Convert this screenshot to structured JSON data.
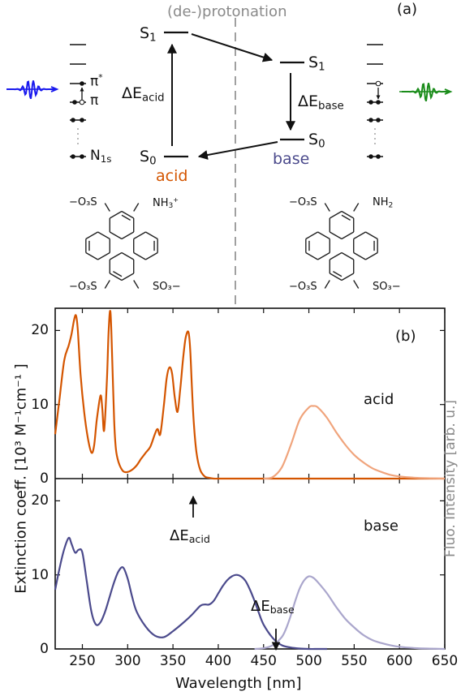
{
  "figure": {
    "panel_a_label": "(a)",
    "panel_b_label": "(b)",
    "protonation_label": "(de-)protonation",
    "acid_label": "acid",
    "base_label": "base",
    "state_labels": {
      "s1_left": "S",
      "s1_left_sub": "1",
      "s0_left": "S",
      "s0_left_sub": "0",
      "s1_right": "S",
      "s1_right_sub": "1",
      "s0_right": "S",
      "s0_right_sub": "0"
    },
    "delta_acid": {
      "main": "ΔE",
      "sub": "acid"
    },
    "delta_base": {
      "main": "ΔE",
      "sub": "base"
    },
    "mo_labels": {
      "pi_star": "π",
      "pi_star_sup": "*",
      "pi": "π",
      "n1s": "N",
      "n1s_sub": "1s"
    },
    "structure_acid": {
      "top_left": "−O₃S",
      "top_right_main": "NH",
      "top_right_sub": "3",
      "top_right_sup": "+",
      "bottom_left": "−O₃S",
      "bottom_right": "SO₃−"
    },
    "structure_base": {
      "top_left": "−O₃S",
      "top_right_main": "NH",
      "top_right_sub": "2",
      "bottom_left": "−O₃S",
      "bottom_right": "SO₃−"
    },
    "colors": {
      "acid": "#d45500",
      "acid_light": "#f0a47c",
      "base": "#4b4a8c",
      "base_light": "#aaa6cc",
      "xray_in": "#1a1aee",
      "xray_out": "#1a8c1a"
    }
  },
  "chart_data": [
    {
      "type": "line",
      "panel": "top",
      "ylabel": "Extinction coeff. [10³ M⁻¹cm⁻¹ ]",
      "y2label": "Fluo. Intensity [arb. u.]",
      "xlim": [
        220,
        650
      ],
      "ylim": [
        0,
        23
      ],
      "yticks": [
        0,
        10,
        20
      ],
      "series_label": "acid",
      "series": [
        {
          "name": "acid absorption",
          "x": [
            220,
            225,
            230,
            235,
            238,
            241,
            243,
            245,
            248,
            252,
            256,
            260,
            263,
            266,
            270,
            272,
            274,
            277,
            279,
            281,
            283,
            285,
            287,
            290,
            295,
            300,
            305,
            310,
            315,
            320,
            325,
            330,
            333,
            336,
            340,
            343,
            346,
            349,
            352,
            355,
            358,
            361,
            364,
            367,
            369,
            371,
            373,
            376,
            380,
            385,
            390,
            395,
            400,
            410,
            420,
            440,
            460,
            480,
            500,
            520,
            540,
            560,
            580,
            600,
            620,
            640,
            650
          ],
          "y": [
            6,
            11,
            16,
            18,
            19.5,
            21.5,
            22,
            20,
            14,
            9,
            5.5,
            3.5,
            4.5,
            8,
            11.2,
            9.5,
            6.5,
            13,
            20,
            22.5,
            16,
            8,
            4,
            2.2,
            1,
            0.9,
            1.2,
            1.8,
            2.7,
            3.5,
            4.3,
            6,
            6.7,
            6,
            10,
            13.5,
            15,
            14.2,
            11,
            9,
            12,
            16,
            19,
            19.8,
            17.5,
            12,
            7.5,
            3.5,
            1.2,
            0.3,
            0.1,
            0,
            0,
            0,
            0,
            0,
            0,
            0,
            0,
            0,
            0,
            0,
            0,
            0,
            0,
            0,
            0
          ]
        },
        {
          "name": "acid fluorescence",
          "x": [
            450,
            460,
            470,
            480,
            490,
            500,
            505,
            510,
            520,
            530,
            540,
            550,
            560,
            570,
            580,
            590,
            600,
            620,
            650
          ],
          "y": [
            0,
            0.2,
            1.5,
            4.5,
            8,
            9.6,
            9.8,
            9.6,
            8.2,
            6.3,
            4.6,
            3.2,
            2.2,
            1.4,
            0.9,
            0.5,
            0.3,
            0.1,
            0
          ]
        }
      ]
    },
    {
      "type": "line",
      "panel": "bottom",
      "xlabel": "Wavelength [nm]",
      "xlim": [
        220,
        650
      ],
      "ylim": [
        0,
        23
      ],
      "xticks": [
        250,
        300,
        350,
        400,
        450,
        500,
        550,
        600,
        650
      ],
      "yticks": [
        0,
        10,
        20
      ],
      "series_label": "base",
      "annotation_acid": "ΔE",
      "annotation_base": "ΔE",
      "series": [
        {
          "name": "base absorption",
          "x": [
            220,
            225,
            230,
            235,
            238,
            242,
            246,
            250,
            255,
            260,
            265,
            270,
            275,
            280,
            285,
            290,
            295,
            300,
            305,
            310,
            320,
            330,
            340,
            350,
            360,
            370,
            380,
            385,
            390,
            395,
            400,
            405,
            410,
            415,
            420,
            425,
            430,
            435,
            440,
            445,
            450,
            460,
            470,
            480,
            490,
            500,
            510,
            520
          ],
          "y": [
            8,
            11,
            13.5,
            15,
            14.2,
            13,
            13.4,
            13,
            9,
            5,
            3.3,
            3.6,
            5,
            7,
            9,
            10.5,
            11,
            9.5,
            7,
            5,
            3,
            1.8,
            1.6,
            2.4,
            3.4,
            4.5,
            5.8,
            6,
            6,
            6.5,
            7.5,
            8.5,
            9.3,
            9.8,
            10,
            9.8,
            9.2,
            8,
            6.5,
            4.8,
            3.3,
            1.5,
            0.5,
            0.2,
            0.05,
            0,
            0,
            0
          ]
        },
        {
          "name": "base fluorescence",
          "x": [
            440,
            450,
            460,
            470,
            475,
            480,
            485,
            490,
            495,
            500,
            505,
            510,
            520,
            530,
            540,
            550,
            560,
            570,
            580,
            590,
            600,
            620,
            650
          ],
          "y": [
            0,
            0.1,
            0.5,
            1.6,
            2.8,
            4.5,
            6.5,
            8.2,
            9.3,
            9.8,
            9.6,
            9,
            7.5,
            5.7,
            4.1,
            2.9,
            1.9,
            1.2,
            0.8,
            0.5,
            0.3,
            0.1,
            0
          ]
        }
      ]
    }
  ]
}
